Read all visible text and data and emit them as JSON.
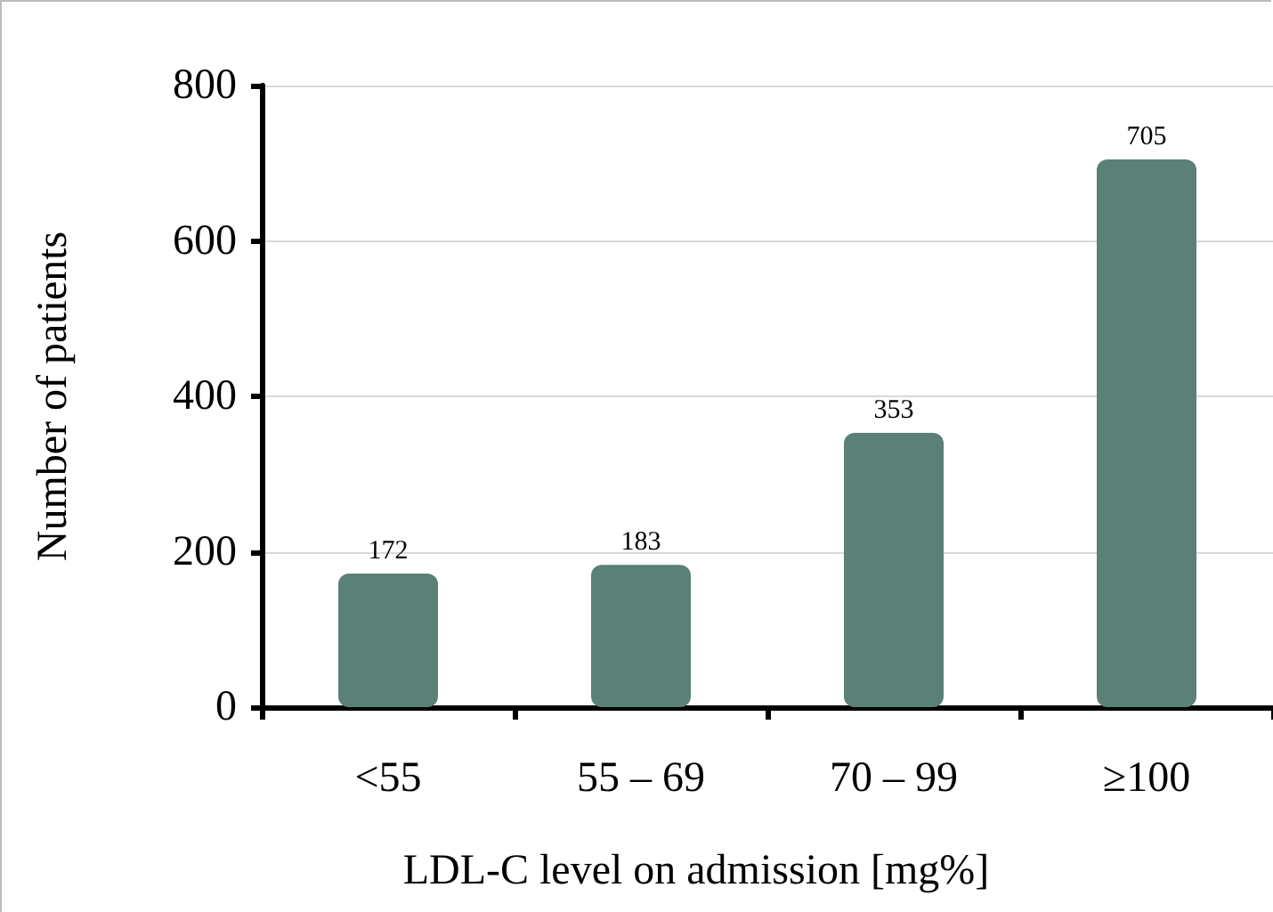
{
  "chart_data": {
    "type": "bar",
    "xlabel": "LDL-C level on admission [mg%]",
    "ylabel": "Number of patients",
    "categories": [
      "<55",
      "55 – 69",
      "70 – 99",
      "≥100"
    ],
    "values": [
      172,
      183,
      353,
      705
    ],
    "color": "#5a8077",
    "ylim": [
      0,
      800
    ],
    "yticks": [
      0,
      200,
      400,
      600,
      800
    ],
    "grid": "y",
    "data_labels": true
  }
}
